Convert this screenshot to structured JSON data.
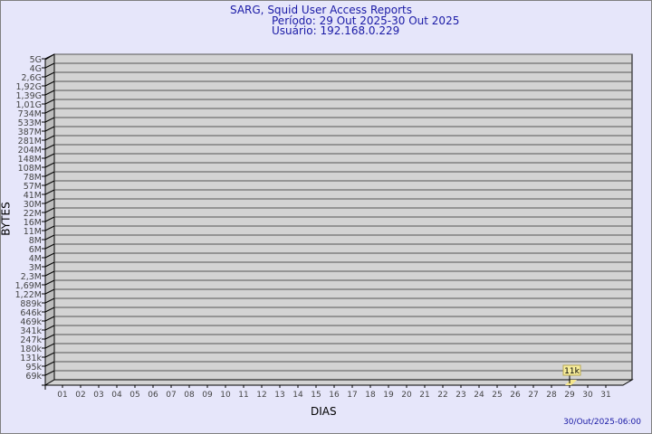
{
  "header": {
    "title": "SARG, Squid User Access Reports",
    "period": "Período: 29 Out 2025-30 Out 2025",
    "user": "Usuário: 192.168.0.229"
  },
  "footer": {
    "timestamp": "30/Out/2025-06:00"
  },
  "chart_data": {
    "type": "bar",
    "xlabel": "DIAS",
    "ylabel": "BYTES",
    "yscale": "log",
    "y_ticks": [
      "5G",
      "4G",
      "2,6G",
      "1,92G",
      "1,39G",
      "1,01G",
      "734M",
      "533M",
      "387M",
      "281M",
      "204M",
      "148M",
      "108M",
      "78M",
      "57M",
      "41M",
      "30M",
      "22M",
      "16M",
      "11M",
      "8M",
      "6M",
      "4M",
      "3M",
      "2,3M",
      "1,69M",
      "1,22M",
      "889k",
      "646k",
      "469k",
      "341k",
      "247k",
      "180k",
      "131k",
      "95k",
      "69k"
    ],
    "categories": [
      "01",
      "02",
      "03",
      "04",
      "05",
      "06",
      "07",
      "08",
      "09",
      "10",
      "11",
      "12",
      "13",
      "14",
      "15",
      "16",
      "17",
      "18",
      "19",
      "20",
      "21",
      "22",
      "23",
      "24",
      "25",
      "26",
      "27",
      "28",
      "29",
      "30",
      "31"
    ],
    "bars": [
      {
        "day": "29",
        "value": "11k"
      }
    ],
    "grid": true,
    "colors": {
      "background": "#e6e6fa",
      "plot": "#d3d3d3",
      "bar": "#f5e68c",
      "label_bg": "#f8ee9c",
      "title": "#1a1aa6"
    }
  }
}
